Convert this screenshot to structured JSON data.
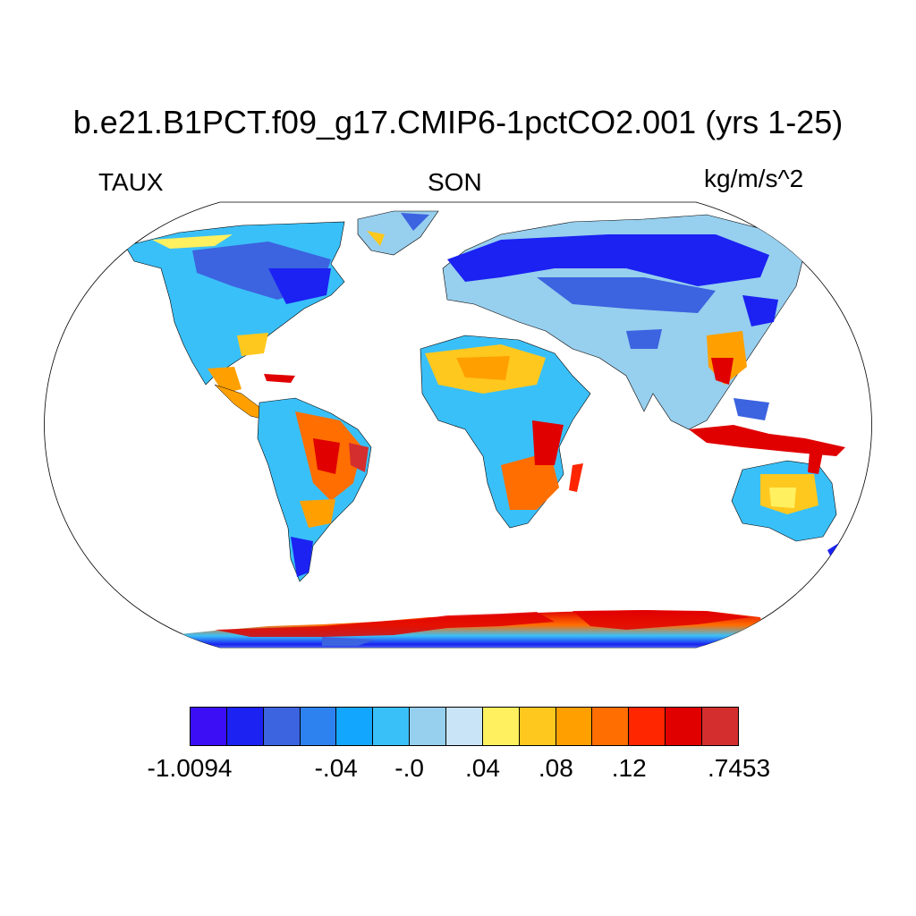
{
  "title": "b.e21.B1PCT.f09_g17.CMIP6-1pctCO2.001 (yrs 1-25)",
  "variable": "TAUX",
  "season": "SON",
  "units": "kg/m/s^2",
  "colorbar": {
    "colors": [
      "#3b0ef5",
      "#1b22f2",
      "#3c63e0",
      "#2d82f0",
      "#12a6ff",
      "#3ac0f8",
      "#97cfee",
      "#c9e4f6",
      "#fff060",
      "#ffc81e",
      "#ffa000",
      "#ff6e00",
      "#ff2600",
      "#e00000",
      "#d42e2e"
    ],
    "labels": [
      {
        "text": "-1.0094",
        "edge": 0
      },
      {
        "text": "-.04",
        "edge": 4
      },
      {
        "text": "-.0",
        "edge": 6
      },
      {
        "text": ".04",
        "edge": 8
      },
      {
        "text": ".08",
        "edge": 10
      },
      {
        "text": ".12",
        "edge": 12
      },
      {
        "text": ".7453",
        "edge": 15
      }
    ]
  }
}
